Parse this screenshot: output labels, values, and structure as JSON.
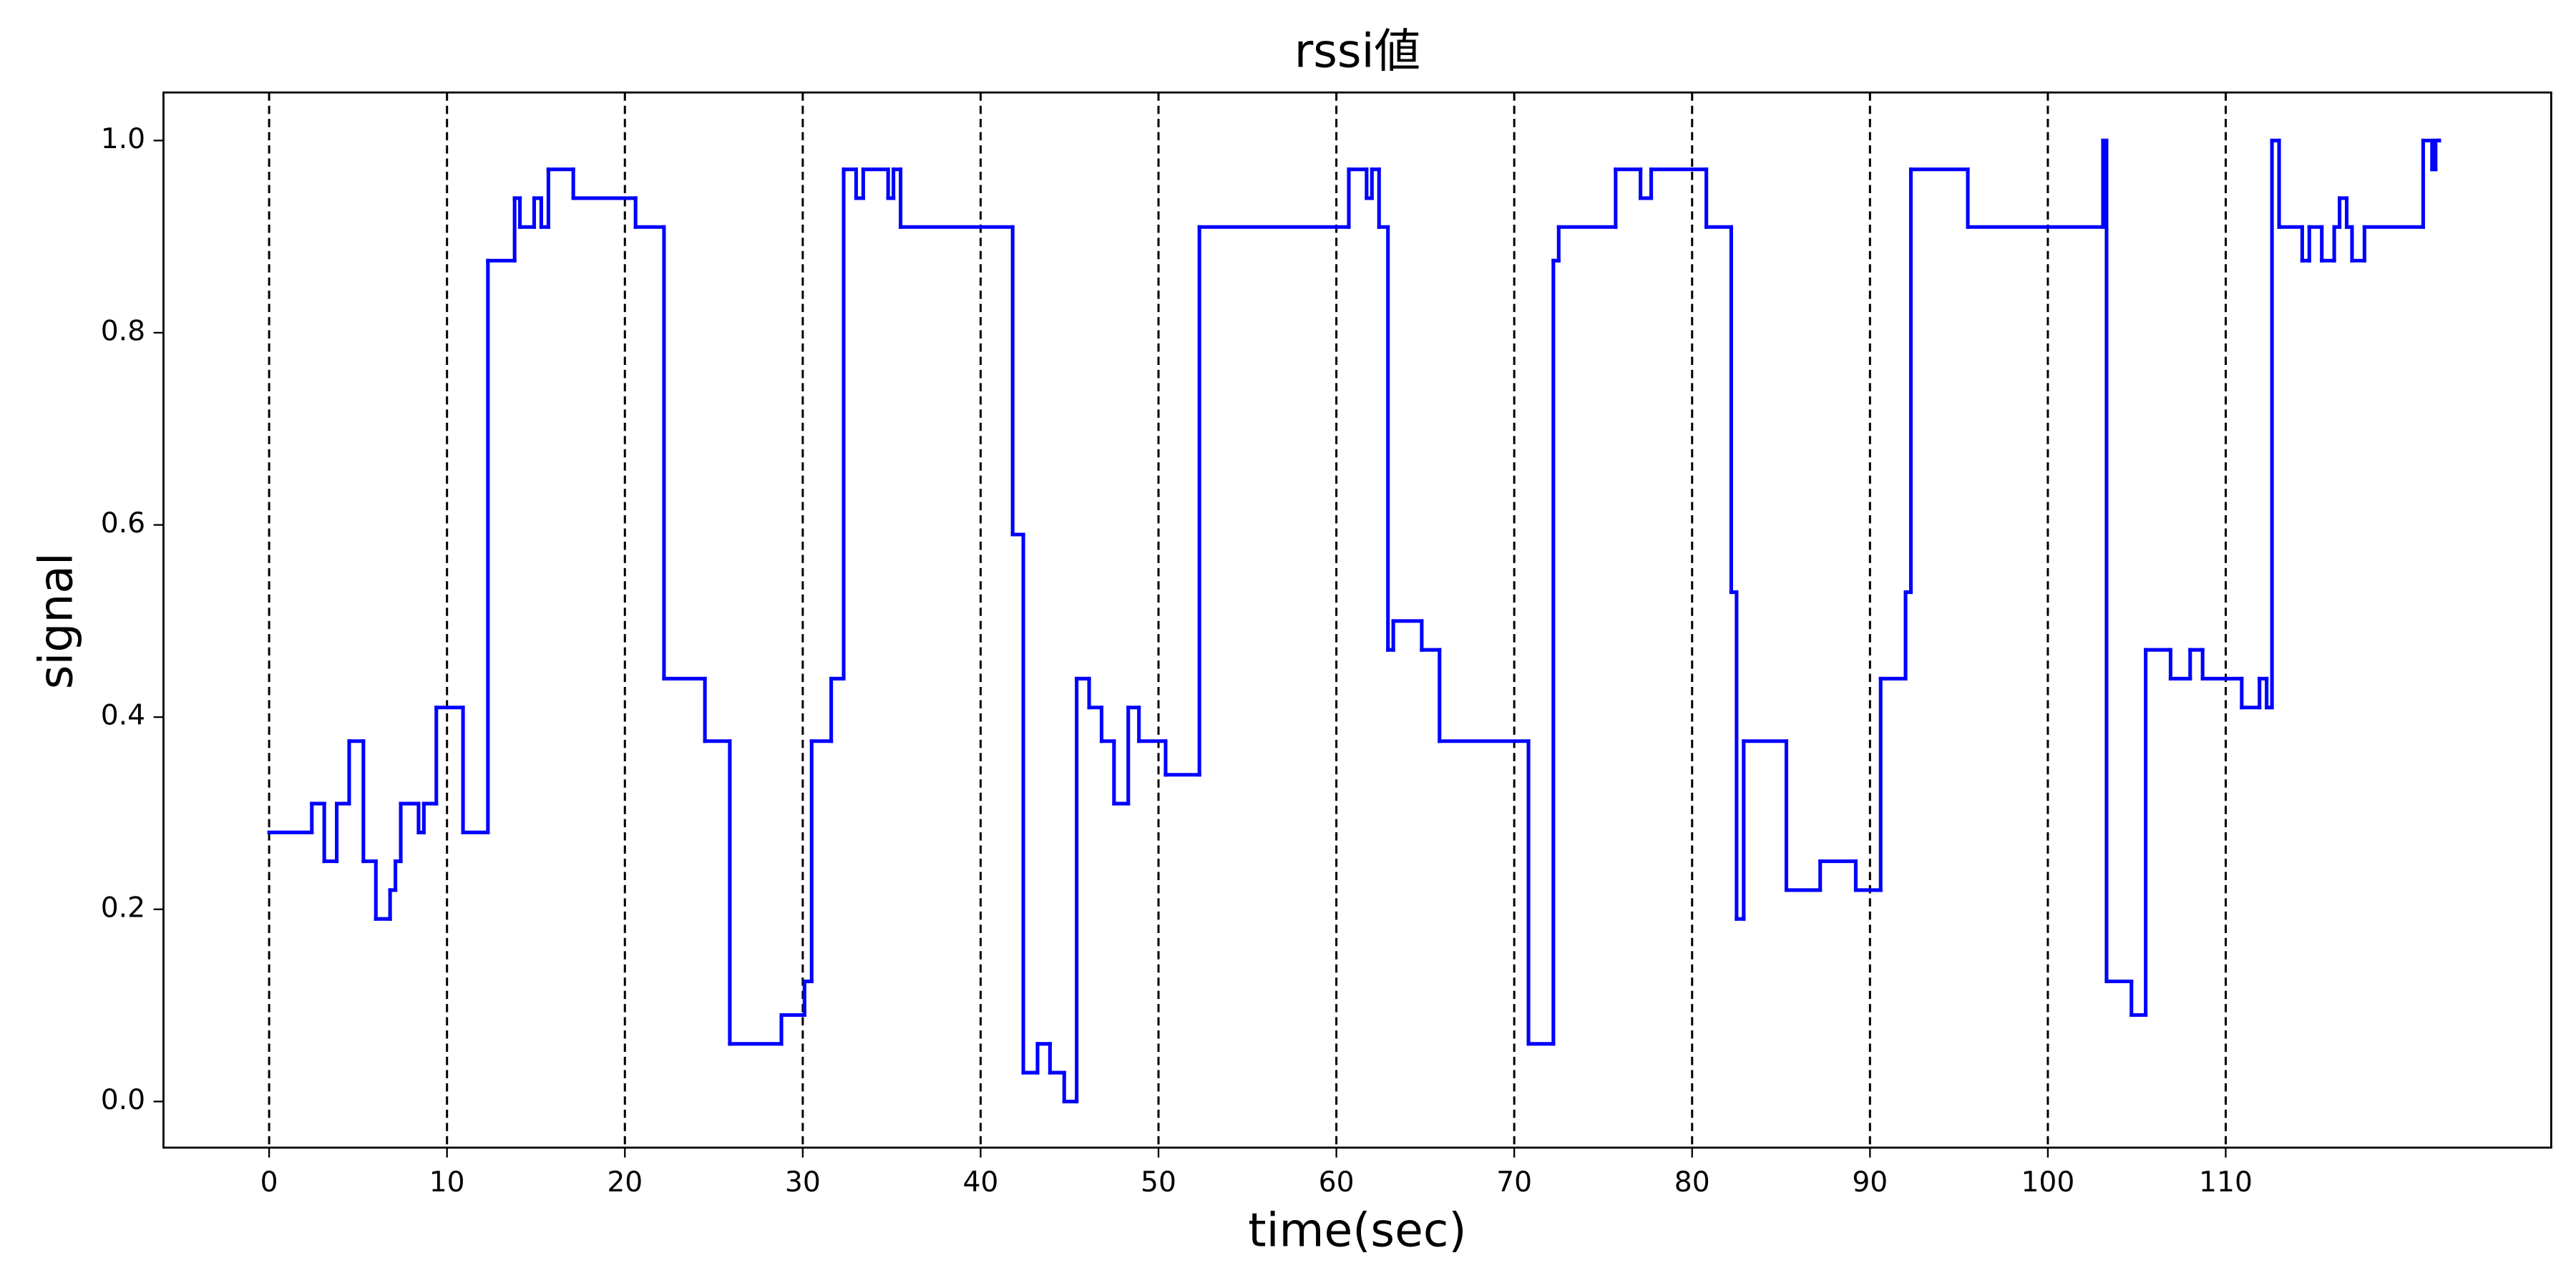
{
  "chart_data": {
    "type": "step",
    "title": "rssi値",
    "xlabel": "time(sec)",
    "ylabel": "signal",
    "series": [
      {
        "color": "#0000ff",
        "x": [
          0,
          2.4,
          3.1,
          3.8,
          4.5,
          5.3,
          6.0,
          6.8,
          7.1,
          7.4,
          8.4,
          8.7,
          9.4,
          10.9,
          12.3,
          13.8,
          14.1,
          14.9,
          15.3,
          15.7,
          17.1,
          20.6,
          22.2,
          24.5,
          25.9,
          28.8,
          30.1,
          30.5,
          31.6,
          32.3,
          33.0,
          33.4,
          34.8,
          35.1,
          35.5,
          41.8,
          42.4,
          43.2,
          43.9,
          44.7,
          45.4,
          46.1,
          46.8,
          47.5,
          48.3,
          48.9,
          50.4,
          52.3,
          60.7,
          61.7,
          62.0,
          62.4,
          62.9,
          63.2,
          64.8,
          65.8,
          70.8,
          72.2,
          72.5,
          75.7,
          77.1,
          77.7,
          80.8,
          82.2,
          82.5,
          82.9,
          85.3,
          87.2,
          89.2,
          90.6,
          92.0,
          92.3,
          95.5,
          103.1,
          103.3,
          104.7,
          105.5,
          106.9,
          108.0,
          108.7,
          110.9,
          111.9,
          112.3,
          112.6,
          113.0,
          114.3,
          114.7,
          115.4,
          116.1,
          116.4,
          116.8,
          117.1,
          117.8,
          121.1,
          121.6,
          121.8,
          122.0
        ],
        "values": [
          0.28,
          0.31,
          0.25,
          0.31,
          0.375,
          0.25,
          0.19,
          0.22,
          0.25,
          0.31,
          0.28,
          0.31,
          0.41,
          0.28,
          0.875,
          0.94,
          0.91,
          0.94,
          0.91,
          0.97,
          0.94,
          0.91,
          0.44,
          0.375,
          0.06,
          0.09,
          0.125,
          0.375,
          0.44,
          0.97,
          0.94,
          0.97,
          0.94,
          0.97,
          0.91,
          0.59,
          0.03,
          0.06,
          0.03,
          0.0,
          0.44,
          0.41,
          0.375,
          0.31,
          0.41,
          0.375,
          0.34,
          0.91,
          0.97,
          0.94,
          0.97,
          0.91,
          0.47,
          0.5,
          0.47,
          0.375,
          0.06,
          0.875,
          0.91,
          0.97,
          0.94,
          0.97,
          0.91,
          0.53,
          0.19,
          0.375,
          0.22,
          0.25,
          0.22,
          0.44,
          0.53,
          0.97,
          0.91,
          1.0,
          0.125,
          0.09,
          0.47,
          0.44,
          0.47,
          0.44,
          0.41,
          0.44,
          0.41,
          1.0,
          0.91,
          0.875,
          0.91,
          0.875,
          0.91,
          0.94,
          0.91,
          0.875,
          0.91,
          1.0,
          0.97,
          1.0,
          1.0
        ]
      }
    ],
    "xlim": [
      -5.94,
      128.3
    ],
    "ylim": [
      -0.048,
      1.05
    ],
    "xticks": [
      0,
      10,
      20,
      30,
      40,
      50,
      60,
      70,
      80,
      90,
      100,
      110
    ],
    "yticks": [
      {
        "value": 0,
        "label": "0.0"
      },
      0.2,
      0.4,
      0.6,
      0.8,
      {
        "value": 1,
        "label": "1.0"
      }
    ],
    "x_grid": true,
    "grid_color": "#000000"
  }
}
